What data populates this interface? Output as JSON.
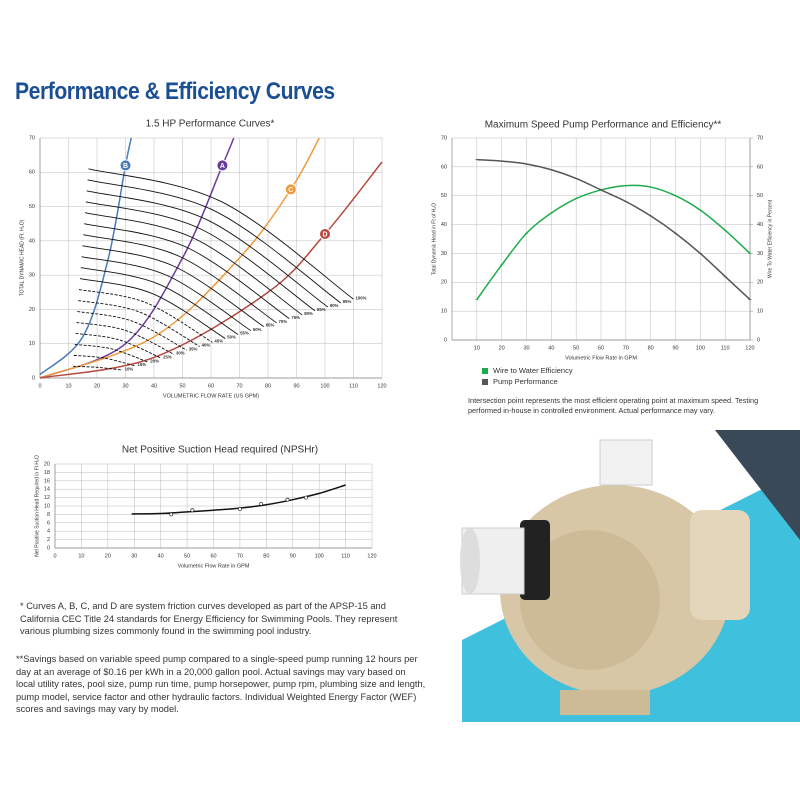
{
  "page": {
    "title": "Performance & Efficiency Curves",
    "notes": [
      "* Curves A, B, C, and D are system friction curves developed as part of the APSP-15 and California CEC Title 24 standards for Energy Efficiency for Swimming Pools.  They represent various plumbing sizes commonly found in the swimming pool industry.",
      "**Savings based on variable speed pump compared to a single-speed pump running 12 hours per day at an average of $0.16 per kWh in a 20,000 gallon pool. Actual savings may vary based on local utility rates, pool size, pump run time, pump horsepower, pump rpm, plumbing size and length, pump model, service factor and other hydraulic factors. Individual Weighted Energy Factor (WEF) scores and savings may vary by model.",
      "Intersection point represents the most efficient operating point at maximum speed. Testing performed in-house in controlled environment. Actual performance may vary."
    ]
  },
  "chart_data": [
    {
      "type": "line",
      "title": "1.5 HP  Performance Curves*",
      "x_label": "VOLUMETRIC FLOW RATE (US GPM)",
      "y_label": "TOTAL DYNAMIC HEAD (Ft. H₂O)",
      "xlim": [
        0,
        120
      ],
      "ylim": [
        0,
        70
      ],
      "xticks": [
        0,
        10,
        20,
        30,
        40,
        50,
        60,
        70,
        80,
        90,
        100,
        110,
        120
      ],
      "yticks": [
        0,
        10,
        20,
        30,
        40,
        50,
        60,
        70
      ],
      "grid": true,
      "series": [
        {
          "name": "B",
          "kind": "system",
          "color": "#4a7bbb",
          "x": [
            0,
            15,
            24,
            30,
            32
          ],
          "values": [
            1,
            12,
            35,
            62,
            70
          ]
        },
        {
          "name": "A",
          "kind": "system",
          "color": "#6b3c9b",
          "x": [
            0,
            30,
            50,
            64,
            68
          ],
          "values": [
            0,
            10,
            35,
            62,
            70
          ]
        },
        {
          "name": "C",
          "kind": "system",
          "color": "#f0993b",
          "x": [
            0,
            40,
            70,
            88,
            98
          ],
          "values": [
            0,
            12,
            35,
            55,
            70
          ]
        },
        {
          "name": "D",
          "kind": "system",
          "color": "#b6493f",
          "x": [
            0,
            40,
            80,
            100,
            120
          ],
          "values": [
            0,
            6,
            25,
            42,
            63
          ]
        },
        {
          "name": "100%",
          "kind": "speed",
          "color": "#111",
          "dashed": false,
          "x": [
            17,
            63.5,
            110
          ],
          "values": [
            61,
            51.5,
            23
          ]
        },
        {
          "name": "95%",
          "kind": "speed",
          "color": "#111",
          "dashed": false,
          "x": [
            16.7,
            61.1,
            105.5
          ],
          "values": [
            57.8,
            48.8,
            21.9
          ]
        },
        {
          "name": "90%",
          "kind": "speed",
          "color": "#111",
          "dashed": false,
          "x": [
            16.4,
            58.7,
            101
          ],
          "values": [
            54.6,
            46.1,
            20.7
          ]
        },
        {
          "name": "85%",
          "kind": "speed",
          "color": "#111",
          "dashed": false,
          "x": [
            16.1,
            56.3,
            96.5
          ],
          "values": [
            51.4,
            43.5,
            19.6
          ]
        },
        {
          "name": "80%",
          "kind": "speed",
          "color": "#111",
          "dashed": false,
          "x": [
            15.8,
            53.9,
            92
          ],
          "values": [
            48.2,
            40.8,
            18.4
          ]
        },
        {
          "name": "75%",
          "kind": "speed",
          "color": "#111",
          "dashed": false,
          "x": [
            15.5,
            51.5,
            87.5
          ],
          "values": [
            45,
            38.1,
            17.3
          ]
        },
        {
          "name": "70%",
          "kind": "speed",
          "color": "#111",
          "dashed": false,
          "x": [
            15.2,
            49.1,
            83
          ],
          "values": [
            41.8,
            35.4,
            16.1
          ]
        },
        {
          "name": "65%",
          "kind": "speed",
          "color": "#111",
          "dashed": false,
          "x": [
            14.9,
            46.7,
            78.5
          ],
          "values": [
            38.6,
            32.7,
            15
          ]
        },
        {
          "name": "60%",
          "kind": "speed",
          "color": "#111",
          "dashed": false,
          "x": [
            14.6,
            44.3,
            74
          ],
          "values": [
            35.4,
            30,
            13.8
          ]
        },
        {
          "name": "55%",
          "kind": "speed",
          "color": "#111",
          "dashed": false,
          "x": [
            14.3,
            41.9,
            69.5
          ],
          "values": [
            32.2,
            27.3,
            12.7
          ]
        },
        {
          "name": "50%",
          "kind": "speed",
          "color": "#111",
          "dashed": false,
          "x": [
            14,
            39.5,
            65
          ],
          "values": [
            29,
            24.6,
            11.5
          ]
        },
        {
          "name": "45%",
          "kind": "speed",
          "color": "#111",
          "dashed": true,
          "x": [
            13.7,
            37.1,
            60.5
          ],
          "values": [
            25.8,
            22,
            10.4
          ]
        },
        {
          "name": "40%",
          "kind": "speed",
          "color": "#111",
          "dashed": true,
          "x": [
            13.4,
            34.7,
            56
          ],
          "values": [
            22.6,
            19.3,
            9.2
          ]
        },
        {
          "name": "35%",
          "kind": "speed",
          "color": "#111",
          "dashed": true,
          "x": [
            13.1,
            32.3,
            51.5
          ],
          "values": [
            19.4,
            16.6,
            8.1
          ]
        },
        {
          "name": "30%",
          "kind": "speed",
          "color": "#111",
          "dashed": true,
          "x": [
            12.8,
            29.9,
            47
          ],
          "values": [
            16.2,
            13.9,
            6.9
          ]
        },
        {
          "name": "25%",
          "kind": "speed",
          "color": "#111",
          "dashed": true,
          "x": [
            12.5,
            27.5,
            42.5
          ],
          "values": [
            13,
            11.2,
            5.8
          ]
        },
        {
          "name": "20%",
          "kind": "speed",
          "color": "#111",
          "dashed": true,
          "x": [
            12.2,
            25.1,
            38
          ],
          "values": [
            9.8,
            8.5,
            4.6
          ]
        },
        {
          "name": "15%",
          "kind": "speed",
          "color": "#111",
          "dashed": true,
          "x": [
            11.9,
            22.7,
            33.5
          ],
          "values": [
            6.6,
            5.8,
            3.5
          ]
        },
        {
          "name": "10%",
          "kind": "speed",
          "color": "#111",
          "dashed": true,
          "x": [
            11.6,
            20.3,
            29
          ],
          "values": [
            3.4,
            3.1,
            2.3
          ]
        }
      ]
    },
    {
      "type": "line",
      "title": "Maximum Speed Pump Performance and Efficiency**",
      "x_label": "Volumetric Flow Rate in GPM",
      "y_label": "Total Dynamic Head in Ft of H₂O",
      "y2_label": "Wire To Water Efficiency in Percent",
      "xlim": [
        0,
        120
      ],
      "ylim": [
        0,
        70
      ],
      "y2lim": [
        0,
        70
      ],
      "xticks": [
        10,
        20,
        30,
        40,
        50,
        60,
        70,
        80,
        90,
        100,
        110,
        120
      ],
      "yticks": [
        0,
        10,
        20,
        30,
        40,
        50,
        60,
        70
      ],
      "y2ticks": [
        0,
        10,
        20,
        30,
        40,
        50,
        60,
        70
      ],
      "grid": true,
      "legend": "below",
      "x": [
        10,
        20,
        30,
        40,
        50,
        60,
        70,
        80,
        90,
        100,
        110,
        120
      ],
      "series": [
        {
          "name": "Wire to Water Efficiency",
          "color": "#1dac4c",
          "axis": "y2",
          "values": [
            14,
            26,
            37,
            44,
            49,
            52,
            53.5,
            53,
            50,
            45,
            38,
            30
          ]
        },
        {
          "name": "Pump Performance",
          "color": "#555",
          "values": [
            62.5,
            62,
            61,
            59,
            56,
            52,
            48,
            43,
            37,
            30,
            22,
            14
          ]
        }
      ]
    },
    {
      "type": "line",
      "title": "Net Positive Suction Head required (NPSHr)",
      "x_label": "Volumetric Flow Rate in GPM",
      "y_label": "Net Positive Suction Head Required in Ft H₂O",
      "xlim": [
        0,
        120
      ],
      "ylim": [
        0,
        20
      ],
      "xticks": [
        0,
        10,
        20,
        30,
        40,
        50,
        60,
        70,
        80,
        90,
        100,
        110,
        120
      ],
      "yticks": [
        0,
        2,
        4,
        6,
        8,
        10,
        12,
        14,
        16,
        18,
        20
      ],
      "grid": true,
      "series": [
        {
          "color": "#111",
          "x": [
            29,
            40,
            50,
            60,
            70,
            80,
            90,
            100,
            110
          ],
          "values": [
            8.1,
            8.2,
            8.6,
            9,
            9.5,
            10.3,
            11.5,
            13,
            15
          ]
        },
        {
          "color": "#111",
          "line": false,
          "markers": true,
          "x": [
            44,
            52,
            70,
            78,
            88,
            95
          ],
          "values": [
            8,
            9,
            9.3,
            10.5,
            11.5,
            12
          ]
        }
      ]
    }
  ]
}
